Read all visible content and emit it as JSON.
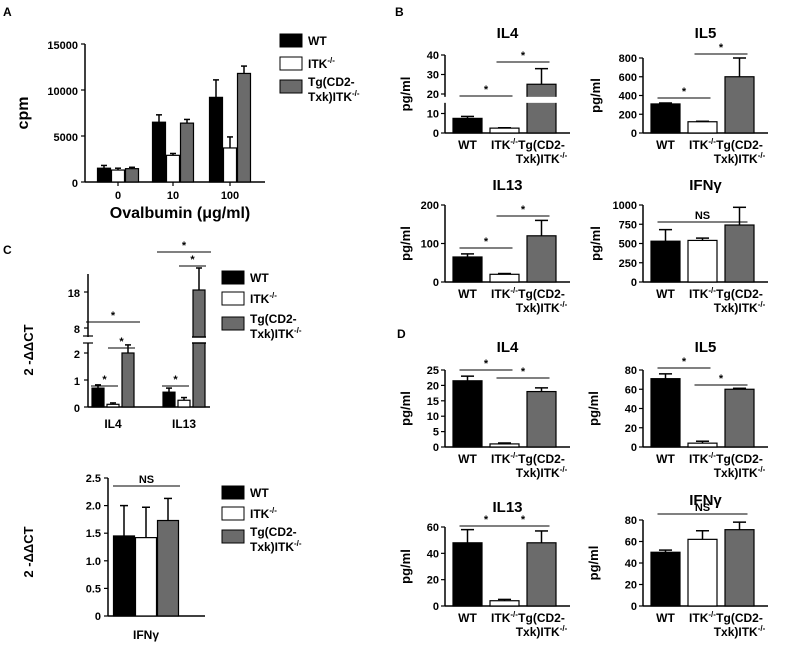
{
  "colors": {
    "WT": "#000000",
    "ITK": "#ffffff",
    "Tg": "#6b6b6b"
  },
  "legend_labels": {
    "wt": "WT",
    "itk": "ITK",
    "itk_sup": "-/-",
    "tg1": "Tg(CD2-",
    "tg2": "Txk)ITK",
    "tg_sup": "-/-"
  },
  "panel_labels": {
    "a": "A",
    "b": "B",
    "c": "C",
    "d": "D"
  },
  "chart_data": [
    {
      "id": "A",
      "type": "bar",
      "title": "",
      "xlabel": "Ovalbumin (μg/ml)",
      "ylabel": "cpm",
      "categories": [
        "0",
        "10",
        "100"
      ],
      "ylim": [
        0,
        15000
      ],
      "yticks": [
        "0",
        "5000",
        "10000",
        "15000"
      ],
      "series": [
        {
          "name": "WT",
          "values": [
            1500,
            6500,
            9200
          ],
          "errors": [
            300,
            800,
            1900
          ]
        },
        {
          "name": "ITK-/-",
          "values": [
            1300,
            2900,
            3700
          ],
          "errors": [
            200,
            200,
            1200
          ]
        },
        {
          "name": "Tg(CD2-Txk)ITK-/-",
          "values": [
            1450,
            6400,
            11800
          ],
          "errors": [
            150,
            400,
            800
          ]
        }
      ],
      "legend": "top-right"
    },
    {
      "id": "B-IL4",
      "type": "bar",
      "title": "IL4",
      "ylabel": "pg/ml",
      "categories": [
        "WT",
        "ITK-/-",
        "Tg(CD2-Txk)ITK-/-"
      ],
      "values": [
        7.5,
        2.5,
        25
      ],
      "errors": [
        1.0,
        0.2,
        8
      ],
      "ylim": [
        0,
        40
      ],
      "yticks": [
        "0",
        "10",
        "20",
        "30",
        "40"
      ],
      "axis_break": true,
      "significance": [
        [
          "WT",
          "ITK-/-",
          "*"
        ],
        [
          "ITK-/-",
          "Tg(CD2-Txk)ITK-/-",
          "*"
        ]
      ]
    },
    {
      "id": "B-IL5",
      "type": "bar",
      "title": "IL5",
      "ylabel": "pg/ml",
      "categories": [
        "WT",
        "ITK-/-",
        "Tg(CD2-Txk)ITK-/-"
      ],
      "values": [
        310,
        120,
        600
      ],
      "errors": [
        10,
        5,
        200
      ],
      "ylim": [
        0,
        800
      ],
      "yticks": [
        "0",
        "200",
        "400",
        "600",
        "800"
      ],
      "significance": [
        [
          "WT",
          "ITK-/-",
          "*"
        ],
        [
          "ITK-/-",
          "Tg(CD2-Txk)ITK-/-",
          "*"
        ]
      ]
    },
    {
      "id": "B-IL13",
      "type": "bar",
      "title": "IL13",
      "ylabel": "pg/ml",
      "categories": [
        "WT",
        "ITK-/-",
        "Tg(CD2-Txk)ITK-/-"
      ],
      "values": [
        65,
        20,
        120
      ],
      "errors": [
        8,
        2,
        40
      ],
      "ylim": [
        0,
        200
      ],
      "yticks": [
        "0",
        "100",
        "200"
      ],
      "significance": [
        [
          "WT",
          "ITK-/-",
          "*"
        ],
        [
          "ITK-/-",
          "Tg(CD2-Txk)ITK-/-",
          "*"
        ]
      ]
    },
    {
      "id": "B-IFNg",
      "type": "bar",
      "title": "IFNγ",
      "ylabel": "pg/ml",
      "categories": [
        "WT",
        "ITK-/-",
        "Tg(CD2-Txk)ITK-/-"
      ],
      "values": [
        530,
        540,
        740
      ],
      "errors": [
        150,
        30,
        230
      ],
      "ylim": [
        0,
        1000
      ],
      "yticks": [
        "0",
        "250",
        "500",
        "750",
        "1000"
      ],
      "significance": [
        [
          "WT",
          "Tg(CD2-Txk)ITK-/-",
          "NS"
        ]
      ]
    },
    {
      "id": "C-top",
      "type": "bar",
      "title": "",
      "ylabel": "2 -ΔΔCT",
      "categories": [
        "IL4",
        "IL13"
      ],
      "yticks": [
        "0",
        "1",
        "2",
        "8",
        "18"
      ],
      "axis_break": true,
      "series": [
        {
          "name": "WT",
          "values": [
            0.7,
            0.55
          ],
          "errors": [
            0.12,
            0.15
          ]
        },
        {
          "name": "ITK-/-",
          "values": [
            0.1,
            0.25
          ],
          "errors": [
            0.05,
            0.1
          ]
        },
        {
          "name": "Tg(CD2-Txk)ITK-/-",
          "values": [
            2.0,
            18.5
          ],
          "errors": [
            0.3,
            2.0
          ]
        }
      ],
      "significance": [
        [
          "IL4 WT",
          "IL4 ITK-/-",
          "*"
        ],
        [
          "IL4 ITK-/-",
          "IL4 Tg",
          "*"
        ],
        [
          "IL4 WT",
          "IL4 Tg",
          "*"
        ],
        [
          "IL13 WT",
          "IL13 ITK-/-",
          "*"
        ],
        [
          "IL13 ITK-/-",
          "IL13 Tg",
          "*"
        ],
        [
          "IL13 WT",
          "IL13 Tg",
          "*"
        ]
      ],
      "legend": "right"
    },
    {
      "id": "C-bottom",
      "type": "bar",
      "title": "",
      "xlabel": "IFNγ",
      "ylabel": "2 -ΔΔCT",
      "categories": [
        "WT",
        "ITK-/-",
        "Tg(CD2-Txk)ITK-/-"
      ],
      "values": [
        1.45,
        1.42,
        1.73
      ],
      "errors": [
        0.55,
        0.55,
        0.4
      ],
      "ylim": [
        0,
        2.5
      ],
      "yticks": [
        "0",
        "0.5",
        "1.0",
        "1.5",
        "2.0",
        "2.5"
      ],
      "significance": [
        [
          "WT",
          "Tg(CD2-Txk)ITK-/-",
          "NS"
        ]
      ],
      "legend": "right"
    },
    {
      "id": "D-IL4",
      "type": "bar",
      "title": "IL4",
      "ylabel": "pg/ml",
      "categories": [
        "WT",
        "ITK-/-",
        "Tg(CD2-Txk)ITK-/-"
      ],
      "values": [
        21.5,
        1.0,
        18.0
      ],
      "errors": [
        1.5,
        0.3,
        1.2
      ],
      "ylim": [
        0,
        25
      ],
      "yticks": [
        "0",
        "5",
        "10",
        "15",
        "20",
        "25"
      ],
      "significance": [
        [
          "WT",
          "ITK-/-",
          "*"
        ],
        [
          "ITK-/-",
          "Tg(CD2-Txk)ITK-/-",
          "*"
        ]
      ]
    },
    {
      "id": "D-IL5",
      "type": "bar",
      "title": "IL5",
      "ylabel": "pg/ml",
      "categories": [
        "WT",
        "ITK-/-",
        "Tg(CD2-Txk)ITK-/-"
      ],
      "values": [
        71,
        4,
        60
      ],
      "errors": [
        5,
        2,
        1
      ],
      "ylim": [
        0,
        80
      ],
      "yticks": [
        "0",
        "20",
        "40",
        "60",
        "80"
      ],
      "significance": [
        [
          "WT",
          "ITK-/-",
          "*"
        ],
        [
          "ITK-/-",
          "Tg(CD2-Txk)ITK-/-",
          "*"
        ]
      ]
    },
    {
      "id": "D-IL13",
      "type": "bar",
      "title": "IL13",
      "ylabel": "pg/ml",
      "categories": [
        "WT",
        "ITK-/-",
        "Tg(CD2-Txk)ITK-/-"
      ],
      "values": [
        48,
        4,
        48
      ],
      "errors": [
        10,
        1,
        9
      ],
      "ylim": [
        0,
        60
      ],
      "yticks": [
        "0",
        "20",
        "40",
        "60"
      ],
      "significance": [
        [
          "WT",
          "ITK-/-",
          "*"
        ],
        [
          "ITK-/-",
          "Tg(CD2-Txk)ITK-/-",
          "*"
        ]
      ]
    },
    {
      "id": "D-IFNg",
      "type": "bar",
      "title": "IFNγ",
      "ylabel": "pg/ml",
      "categories": [
        "WT",
        "ITK-/-",
        "Tg(CD2-Txk)ITK-/-"
      ],
      "values": [
        50,
        62,
        71
      ],
      "errors": [
        2,
        8,
        7
      ],
      "ylim": [
        0,
        80
      ],
      "yticks": [
        "0",
        "20",
        "40",
        "60",
        "80"
      ],
      "significance": [
        [
          "WT",
          "Tg(CD2-Txk)ITK-/-",
          "NS"
        ]
      ]
    }
  ]
}
